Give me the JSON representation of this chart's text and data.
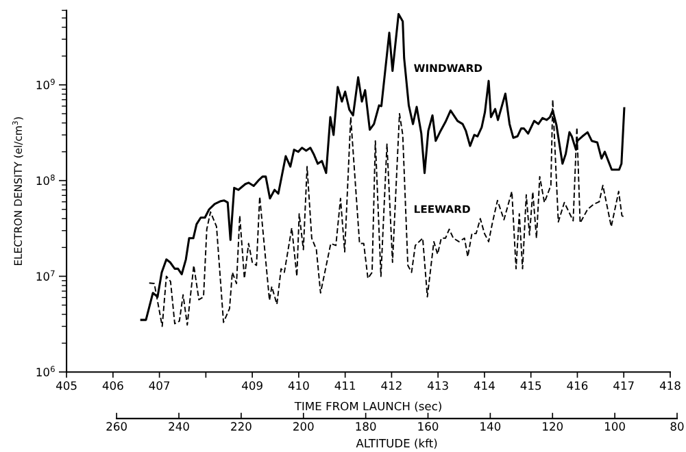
{
  "chart_data": {
    "type": "line",
    "xlabel": "TIME FROM LAUNCH (sec)",
    "ylabel": "ELECTRON DENSITY (el/cm$^{3}$)",
    "x2label": "ALTITUDE (kft)",
    "log": "y",
    "grid": false,
    "legend": false,
    "marker": "none",
    "xlim": [
      405,
      418
    ],
    "xticks": [
      405,
      406,
      407,
      {
        "value": 408,
        "label": null
      },
      409,
      410,
      411,
      412,
      413,
      414,
      415,
      416,
      417,
      418
    ],
    "x2lim": [
      260,
      80
    ],
    "x2ticks": [
      260,
      240,
      220,
      200,
      180,
      160,
      140,
      120,
      100,
      80
    ],
    "ylim": [
      1000000,
      6000000000
    ],
    "yticks": [
      {
        "value": 1000000,
        "label": "10$^{6}$"
      },
      {
        "value": 10000000,
        "label": "10$^{7}$"
      },
      {
        "value": 100000000,
        "label": "10$^{8}$"
      },
      {
        "value": 1000000000,
        "label": "10$^{9}$"
      }
    ],
    "series": [
      {
        "name": "WINDWARD",
        "color": "#000000",
        "line_style": "solid",
        "x": [
          406.61,
          406.71,
          406.86,
          406.96,
          407.05,
          407.15,
          407.23,
          407.33,
          407.4,
          407.48,
          407.57,
          407.64,
          407.73,
          407.8,
          407.89,
          407.98,
          408.07,
          408.19,
          408.32,
          408.39,
          408.47,
          408.53,
          408.61,
          408.7,
          408.85,
          408.92,
          409.03,
          409.13,
          409.22,
          409.29,
          409.38,
          409.48,
          409.56,
          409.72,
          409.82,
          409.9,
          409.99,
          410.07,
          410.16,
          410.25,
          410.32,
          410.41,
          410.5,
          410.59,
          410.68,
          410.75,
          410.84,
          410.93,
          411.0,
          411.09,
          411.17,
          411.28,
          411.36,
          411.43,
          411.53,
          411.62,
          411.73,
          411.78,
          411.95,
          412.02,
          412.15,
          412.24,
          412.27,
          412.37,
          412.46,
          412.54,
          412.64,
          412.71,
          412.79,
          412.88,
          412.95,
          413.04,
          413.16,
          413.27,
          413.42,
          413.53,
          413.6,
          413.69,
          413.78,
          413.85,
          413.94,
          414.01,
          414.09,
          414.14,
          414.23,
          414.29,
          414.45,
          414.54,
          414.62,
          414.71,
          414.79,
          414.85,
          414.94,
          415.07,
          415.16,
          415.25,
          415.34,
          415.41,
          415.47,
          415.55,
          415.68,
          415.75,
          415.83,
          415.88,
          415.97,
          416.0,
          416.11,
          416.22,
          416.31,
          416.43,
          416.52,
          416.59,
          416.74,
          416.83,
          416.9,
          416.95,
          417.01
        ],
        "values": [
          3500000.0,
          3500000.0,
          6700000.0,
          6100000.0,
          11000000.0,
          15000000.0,
          14000000.0,
          12000000.0,
          12000000.0,
          10500000.0,
          15000000.0,
          25000000.0,
          25000000.0,
          35000000.0,
          41000000.0,
          41000000.0,
          50000000.0,
          57000000.0,
          61000000.0,
          62000000.0,
          59000000.0,
          24000000.0,
          84000000.0,
          80000000.0,
          92000000.0,
          95000000.0,
          88000000.0,
          100000000.0,
          110000000.0,
          110000000.0,
          65000000.0,
          80000000.0,
          73000000.0,
          180000000.0,
          140000000.0,
          210000000.0,
          200000000.0,
          220000000.0,
          205000000.0,
          220000000.0,
          190000000.0,
          150000000.0,
          160000000.0,
          120000000.0,
          460000000.0,
          300000000.0,
          950000000.0,
          670000000.0,
          850000000.0,
          550000000.0,
          480000000.0,
          1200000000.0,
          670000000.0,
          880000000.0,
          340000000.0,
          390000000.0,
          610000000.0,
          600000000.0,
          3500000000.0,
          1400000000.0,
          5500000000.0,
          4600000000.0,
          1900000000.0,
          610000000.0,
          390000000.0,
          590000000.0,
          310000000.0,
          120000000.0,
          330000000.0,
          480000000.0,
          260000000.0,
          320000000.0,
          410000000.0,
          540000000.0,
          420000000.0,
          390000000.0,
          330000000.0,
          230000000.0,
          300000000.0,
          290000000.0,
          360000000.0,
          520000000.0,
          1100000000.0,
          460000000.0,
          560000000.0,
          430000000.0,
          810000000.0,
          390000000.0,
          280000000.0,
          290000000.0,
          350000000.0,
          350000000.0,
          310000000.0,
          420000000.0,
          390000000.0,
          450000000.0,
          430000000.0,
          460000000.0,
          540000000.0,
          380000000.0,
          150000000.0,
          190000000.0,
          320000000.0,
          290000000.0,
          210000000.0,
          260000000.0,
          290000000.0,
          320000000.0,
          260000000.0,
          250000000.0,
          170000000.0,
          200000000.0,
          130000000.0,
          130000000.0,
          130000000.0,
          150000000.0,
          570000000.0
        ]
      },
      {
        "name": "LEEWARD",
        "color": "#000000",
        "line_style": "dashed",
        "x": [
          406.78,
          406.89,
          407.06,
          407.15,
          407.24,
          407.33,
          407.43,
          407.51,
          407.6,
          407.74,
          407.85,
          407.95,
          408.02,
          408.1,
          408.23,
          408.38,
          408.51,
          408.57,
          408.66,
          408.73,
          408.83,
          408.92,
          409.0,
          409.09,
          409.16,
          409.37,
          409.42,
          409.53,
          409.62,
          409.69,
          409.85,
          409.96,
          410.01,
          410.1,
          410.18,
          410.28,
          410.38,
          410.47,
          410.69,
          410.8,
          410.9,
          410.99,
          411.12,
          411.31,
          411.4,
          411.49,
          411.58,
          411.65,
          411.77,
          411.9,
          412.02,
          412.17,
          412.24,
          412.35,
          412.43,
          412.51,
          412.67,
          412.77,
          412.91,
          412.99,
          413.07,
          413.16,
          413.24,
          413.33,
          413.45,
          413.57,
          413.64,
          413.73,
          413.82,
          413.91,
          414.0,
          414.09,
          414.17,
          414.28,
          414.42,
          414.59,
          414.68,
          414.75,
          414.82,
          414.9,
          414.97,
          415.04,
          415.12,
          415.19,
          415.29,
          415.43,
          415.47,
          415.59,
          415.72,
          415.91,
          415.99,
          416.06,
          416.22,
          416.36,
          416.47,
          416.55,
          416.73,
          416.89,
          416.96,
          417.04
        ],
        "values": [
          8500000.0,
          8400000.0,
          3000000.0,
          10000000.0,
          8800000.0,
          3200000.0,
          3400000.0,
          6400000.0,
          3100000.0,
          13000000.0,
          5700000.0,
          6100000.0,
          31000000.0,
          47000000.0,
          33000000.0,
          3300000.0,
          4600000.0,
          11000000.0,
          8400000.0,
          43000000.0,
          9500000.0,
          22000000.0,
          14000000.0,
          13000000.0,
          68000000.0,
          5600000.0,
          7800000.0,
          5100000.0,
          12000000.0,
          11000000.0,
          32000000.0,
          10000000.0,
          45000000.0,
          19000000.0,
          140000000.0,
          25000000.0,
          19000000.0,
          6700000.0,
          22000000.0,
          21000000.0,
          65000000.0,
          18000000.0,
          460000000.0,
          22000000.0,
          22000000.0,
          9500000.0,
          11000000.0,
          260000000.0,
          10000000.0,
          240000000.0,
          14000000.0,
          500000000.0,
          300000000.0,
          13000000.0,
          11000000.0,
          21000000.0,
          25000000.0,
          6100000.0,
          23000000.0,
          17000000.0,
          25000000.0,
          25000000.0,
          31000000.0,
          25000000.0,
          23000000.0,
          25000000.0,
          16000000.0,
          28000000.0,
          28000000.0,
          40000000.0,
          28000000.0,
          23000000.0,
          36000000.0,
          62000000.0,
          39000000.0,
          77000000.0,
          12000000.0,
          45000000.0,
          12000000.0,
          71000000.0,
          27000000.0,
          76000000.0,
          25000000.0,
          110000000.0,
          59000000.0,
          89000000.0,
          700000000.0,
          37000000.0,
          59000000.0,
          38000000.0,
          360000000.0,
          36000000.0,
          50000000.0,
          57000000.0,
          60000000.0,
          89000000.0,
          33000000.0,
          77000000.0,
          43000000.0,
          41000000.0
        ]
      }
    ]
  }
}
